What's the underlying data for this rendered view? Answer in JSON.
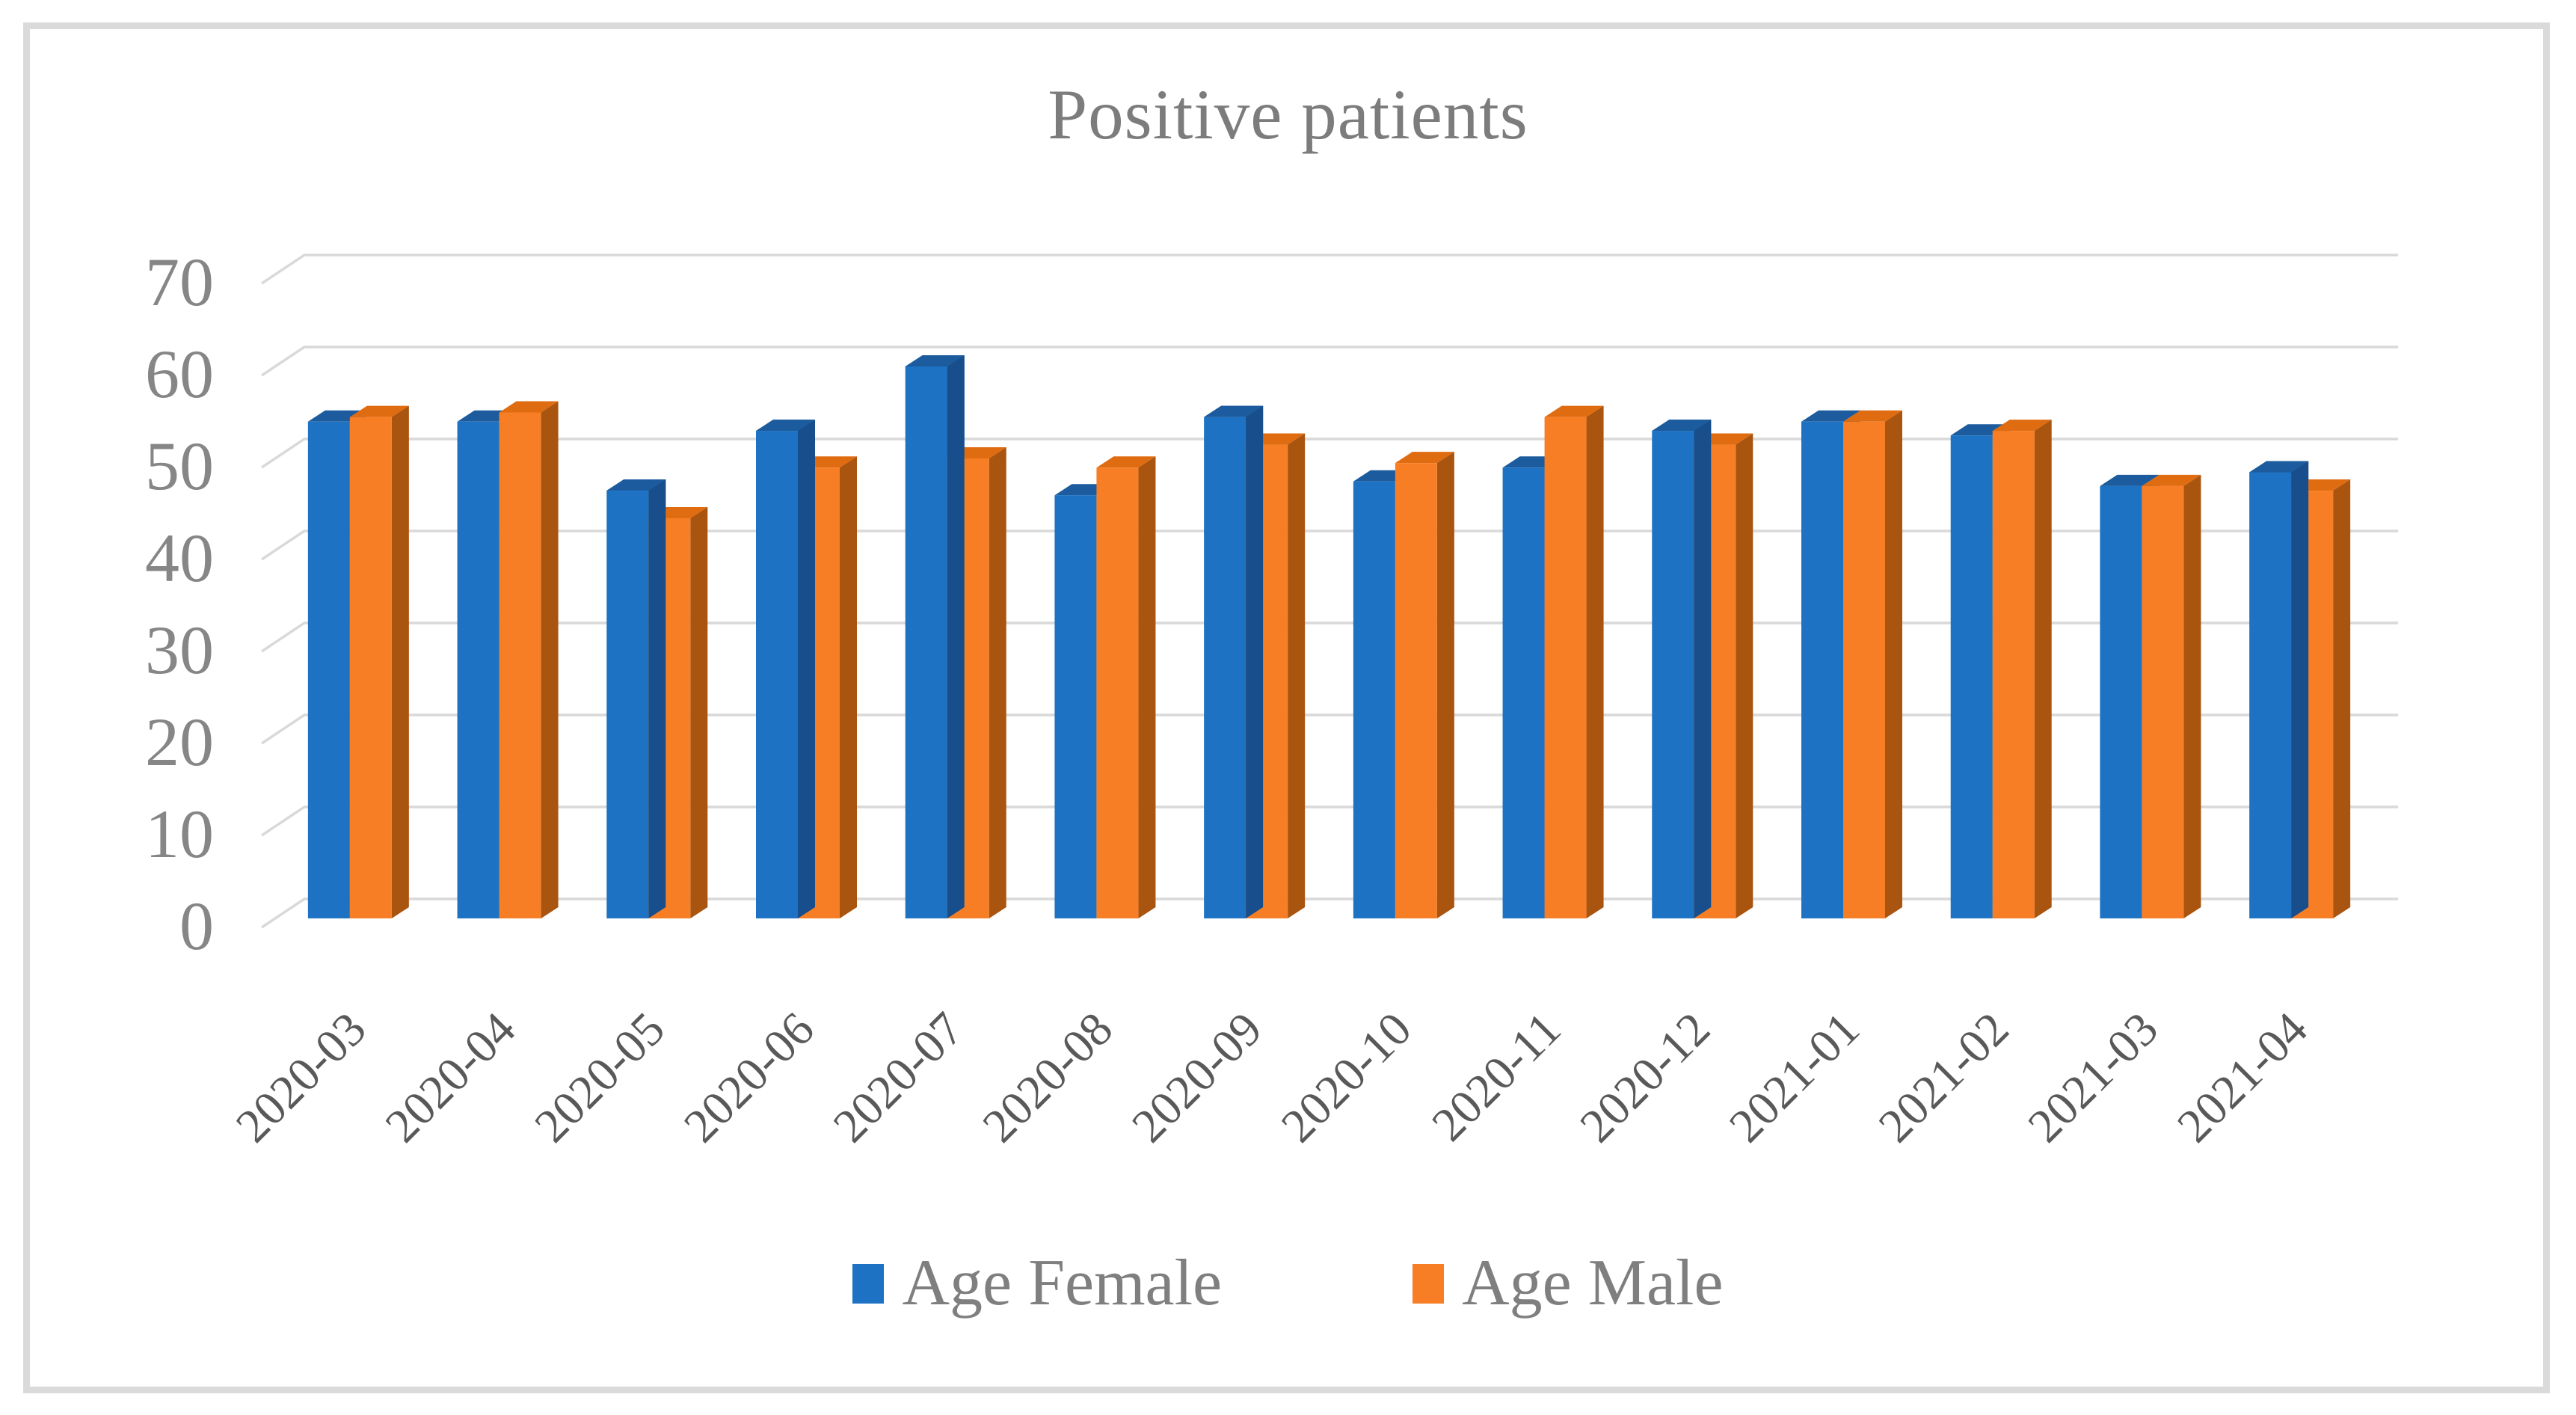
{
  "figure": {
    "background_color": "#ffffff",
    "border_color": "#dadada"
  },
  "chart_data": {
    "type": "bar",
    "style": "3d-clustered-column",
    "title": "Positive patients",
    "categories": [
      "2020-03",
      "2020-04",
      "2020-05",
      "2020-06",
      "2020-07",
      "2020-08",
      "2020-09",
      "2020-10",
      "2020-11",
      "2020-12",
      "2021-01",
      "2021-02",
      "2021-03",
      "2021-04"
    ],
    "series": [
      {
        "name": "Age Female",
        "color": "#1d72c4",
        "color_top": "#1c5c9e",
        "color_side": "#174e8b",
        "values": [
          54,
          54,
          46.5,
          53,
          60,
          46,
          54.5,
          47.5,
          49,
          53,
          54,
          52.5,
          47,
          48.5
        ]
      },
      {
        "name": "Age Male",
        "color": "#f87e26",
        "color_top": "#e06c12",
        "color_side": "#a9540f",
        "values": [
          54.5,
          55,
          43.5,
          49,
          50,
          49,
          51.5,
          49.5,
          54.5,
          51.5,
          54,
          53,
          47,
          46.5
        ]
      }
    ],
    "ylim": [
      0,
      70
    ],
    "yticks": [
      0,
      10,
      20,
      30,
      40,
      50,
      60,
      70
    ],
    "grid": true,
    "gridline_color": "#d9d9d9",
    "legend_position": "bottom",
    "ytick_text_color": "#868686",
    "xtick_text_color": "#595959",
    "title_text_color": "#7c7c7c",
    "legend_text_color": "#7f7f7f"
  }
}
